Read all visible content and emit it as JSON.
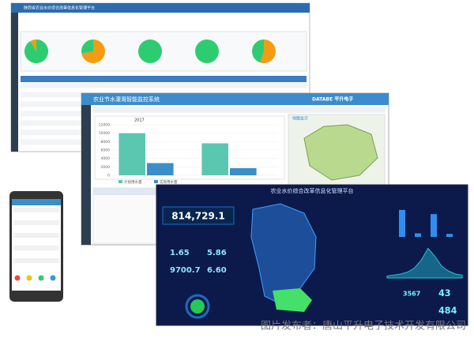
{
  "back_window": {
    "title": "陕西省农业水价综合改革信息化管理平台",
    "pies": [
      {
        "values": [
          92,
          8
        ],
        "colors": [
          "#2ecc71",
          "#f39c12"
        ]
      },
      {
        "values": [
          72,
          28
        ],
        "colors": [
          "#f39c12",
          "#2ecc71"
        ]
      },
      {
        "values": [
          100
        ],
        "colors": [
          "#2ecc71"
        ]
      },
      {
        "values": [
          100
        ],
        "colors": [
          "#2ecc71"
        ]
      },
      {
        "values": [
          55,
          45
        ],
        "colors": [
          "#f39c12",
          "#2ecc71"
        ]
      }
    ]
  },
  "middle_window": {
    "title": "农业节水灌溉智能监控系统",
    "logo": "DATABE 平升电子",
    "year": "2017",
    "map_title": "地图显示",
    "chart": {
      "type": "bar",
      "categories": [
        null,
        null
      ],
      "ylim": [
        0,
        12000
      ],
      "yticks": [
        0,
        2000,
        4000,
        6000,
        8000,
        10000,
        12000
      ],
      "series": [
        {
          "name": "计划用水量",
          "color": "#5cc7b0",
          "values": [
            10000,
            7600
          ]
        },
        {
          "name": "实际用水量",
          "color": "#3a8fc8",
          "values": [
            2900,
            1700
          ]
        }
      ]
    }
  },
  "dark_screen": {
    "title": "农业水价综合改革信息化管理平台",
    "total": "814,729.1",
    "stats": [
      "1.65",
      "5.86",
      "9700.7",
      "6.60"
    ],
    "counters": [
      "3567",
      "43",
      "484"
    ],
    "bars": {
      "values": [
        45,
        6,
        38,
        5
      ],
      "ylim": [
        0,
        50
      ],
      "color": "#2f8ff0"
    },
    "area": {
      "values": [
        2,
        3,
        4,
        6,
        10,
        18,
        30,
        22,
        12,
        7,
        4,
        3
      ],
      "ylim": [
        0,
        32
      ],
      "color": "#23c4d8"
    }
  },
  "watermark": "图片发布者：唐山平升电子技术开发有限公司"
}
